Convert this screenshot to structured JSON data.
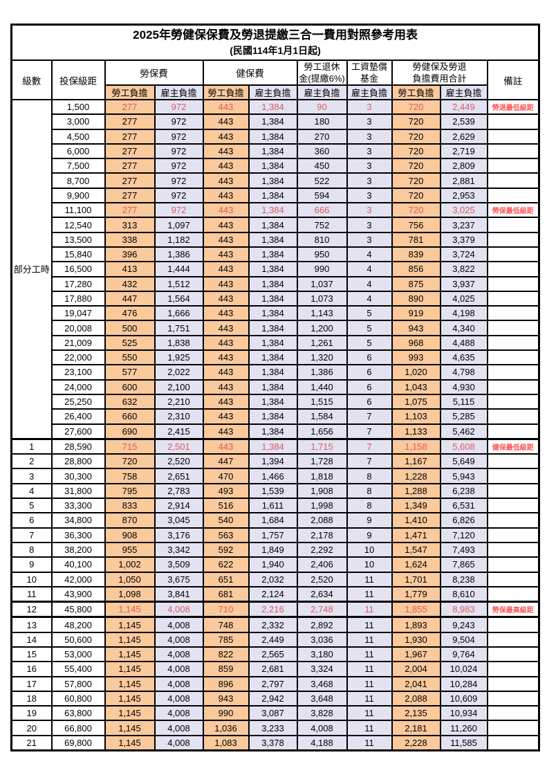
{
  "title": "2025年勞健保保費及勞退提繳三合一費用對照參考用表",
  "subtitle": "(民國114年1月1日起)",
  "header": {
    "level": "級數",
    "salary_bracket": "投保級距",
    "labor_insurance": "勞保費",
    "health_insurance": "健保費",
    "pension_line1": "勞工退休",
    "pension_line2": "金(提繳6%)",
    "wage_fund_line1": "工資墊償",
    "wage_fund_line2": "基金",
    "total_line1": "勞健保及勞退",
    "total_line2": "負擔費用合計",
    "remarks": "備註",
    "employee_share": "勞工負擔",
    "employer_share": "雇主負擔"
  },
  "part_time_label": "部分工時",
  "colors": {
    "employee_bg": "#FAC99C",
    "employer_bg": "#E3E2F1",
    "highlight_red": "#D95C5C",
    "remark_red": "#FF5555"
  },
  "rows": [
    {
      "level": "",
      "salary": "1,500",
      "values": [
        "277",
        "972",
        "443",
        "1,384",
        "90",
        "3",
        "720",
        "2,449"
      ],
      "remark": "勞退最低級距",
      "highlight": true
    },
    {
      "level": "",
      "salary": "3,000",
      "values": [
        "277",
        "972",
        "443",
        "1,384",
        "180",
        "3",
        "720",
        "2,539"
      ],
      "remark": "",
      "highlight": false
    },
    {
      "level": "",
      "salary": "4,500",
      "values": [
        "277",
        "972",
        "443",
        "1,384",
        "270",
        "3",
        "720",
        "2,629"
      ],
      "remark": "",
      "highlight": false
    },
    {
      "level": "",
      "salary": "6,000",
      "values": [
        "277",
        "972",
        "443",
        "1,384",
        "360",
        "3",
        "720",
        "2,719"
      ],
      "remark": "",
      "highlight": false
    },
    {
      "level": "",
      "salary": "7,500",
      "values": [
        "277",
        "972",
        "443",
        "1,384",
        "450",
        "3",
        "720",
        "2,809"
      ],
      "remark": "",
      "highlight": false
    },
    {
      "level": "",
      "salary": "8,700",
      "values": [
        "277",
        "972",
        "443",
        "1,384",
        "522",
        "3",
        "720",
        "2,881"
      ],
      "remark": "",
      "highlight": false
    },
    {
      "level": "",
      "salary": "9,900",
      "values": [
        "277",
        "972",
        "443",
        "1,384",
        "594",
        "3",
        "720",
        "2,953"
      ],
      "remark": "",
      "highlight": false
    },
    {
      "level": "",
      "salary": "11,100",
      "values": [
        "277",
        "972",
        "443",
        "1,384",
        "666",
        "3",
        "720",
        "3,025"
      ],
      "remark": "勞保最低級距",
      "highlight": true
    },
    {
      "level": "",
      "salary": "12,540",
      "values": [
        "313",
        "1,097",
        "443",
        "1,384",
        "752",
        "3",
        "756",
        "3,237"
      ],
      "remark": "",
      "highlight": false
    },
    {
      "level": "",
      "salary": "13,500",
      "values": [
        "338",
        "1,182",
        "443",
        "1,384",
        "810",
        "3",
        "781",
        "3,379"
      ],
      "remark": "",
      "highlight": false
    },
    {
      "level": "",
      "salary": "15,840",
      "values": [
        "396",
        "1,386",
        "443",
        "1,384",
        "950",
        "4",
        "839",
        "3,724"
      ],
      "remark": "",
      "highlight": false
    },
    {
      "level": "",
      "salary": "16,500",
      "values": [
        "413",
        "1,444",
        "443",
        "1,384",
        "990",
        "4",
        "856",
        "3,822"
      ],
      "remark": "",
      "highlight": false
    },
    {
      "level": "",
      "salary": "17,280",
      "values": [
        "432",
        "1,512",
        "443",
        "1,384",
        "1,037",
        "4",
        "875",
        "3,937"
      ],
      "remark": "",
      "highlight": false
    },
    {
      "level": "",
      "salary": "17,880",
      "values": [
        "447",
        "1,564",
        "443",
        "1,384",
        "1,073",
        "4",
        "890",
        "4,025"
      ],
      "remark": "",
      "highlight": false
    },
    {
      "level": "",
      "salary": "19,047",
      "values": [
        "476",
        "1,666",
        "443",
        "1,384",
        "1,143",
        "5",
        "919",
        "4,198"
      ],
      "remark": "",
      "highlight": false
    },
    {
      "level": "",
      "salary": "20,008",
      "values": [
        "500",
        "1,751",
        "443",
        "1,384",
        "1,200",
        "5",
        "943",
        "4,340"
      ],
      "remark": "",
      "highlight": false
    },
    {
      "level": "",
      "salary": "21,009",
      "values": [
        "525",
        "1,838",
        "443",
        "1,384",
        "1,261",
        "5",
        "968",
        "4,488"
      ],
      "remark": "",
      "highlight": false
    },
    {
      "level": "",
      "salary": "22,000",
      "values": [
        "550",
        "1,925",
        "443",
        "1,384",
        "1,320",
        "6",
        "993",
        "4,635"
      ],
      "remark": "",
      "highlight": false
    },
    {
      "level": "",
      "salary": "23,100",
      "values": [
        "577",
        "2,022",
        "443",
        "1,384",
        "1,386",
        "6",
        "1,020",
        "4,798"
      ],
      "remark": "",
      "highlight": false
    },
    {
      "level": "",
      "salary": "24,000",
      "values": [
        "600",
        "2,100",
        "443",
        "1,384",
        "1,440",
        "6",
        "1,043",
        "4,930"
      ],
      "remark": "",
      "highlight": false
    },
    {
      "level": "",
      "salary": "25,250",
      "values": [
        "632",
        "2,210",
        "443",
        "1,384",
        "1,515",
        "6",
        "1,075",
        "5,115"
      ],
      "remark": "",
      "highlight": false
    },
    {
      "level": "",
      "salary": "26,400",
      "values": [
        "660",
        "2,310",
        "443",
        "1,384",
        "1,584",
        "7",
        "1,103",
        "5,285"
      ],
      "remark": "",
      "highlight": false
    },
    {
      "level": "",
      "salary": "27,600",
      "values": [
        "690",
        "2,415",
        "443",
        "1,384",
        "1,656",
        "7",
        "1,133",
        "5,462"
      ],
      "remark": "",
      "highlight": false
    },
    {
      "level": "1",
      "salary": "28,590",
      "values": [
        "715",
        "2,501",
        "443",
        "1,384",
        "1,715",
        "7",
        "1,158",
        "5,608"
      ],
      "remark": "健保最低級距",
      "highlight": true
    },
    {
      "level": "2",
      "salary": "28,800",
      "values": [
        "720",
        "2,520",
        "447",
        "1,394",
        "1,728",
        "7",
        "1,167",
        "5,649"
      ],
      "remark": "",
      "highlight": false
    },
    {
      "level": "3",
      "salary": "30,300",
      "values": [
        "758",
        "2,651",
        "470",
        "1,466",
        "1,818",
        "8",
        "1,228",
        "5,943"
      ],
      "remark": "",
      "highlight": false
    },
    {
      "level": "4",
      "salary": "31,800",
      "values": [
        "795",
        "2,783",
        "493",
        "1,539",
        "1,908",
        "8",
        "1,288",
        "6,238"
      ],
      "remark": "",
      "highlight": false
    },
    {
      "level": "5",
      "salary": "33,300",
      "values": [
        "833",
        "2,914",
        "516",
        "1,611",
        "1,998",
        "8",
        "1,349",
        "6,531"
      ],
      "remark": "",
      "highlight": false
    },
    {
      "level": "6",
      "salary": "34,800",
      "values": [
        "870",
        "3,045",
        "540",
        "1,684",
        "2,088",
        "9",
        "1,410",
        "6,826"
      ],
      "remark": "",
      "highlight": false
    },
    {
      "level": "7",
      "salary": "36,300",
      "values": [
        "908",
        "3,176",
        "563",
        "1,757",
        "2,178",
        "9",
        "1,471",
        "7,120"
      ],
      "remark": "",
      "highlight": false
    },
    {
      "level": "8",
      "salary": "38,200",
      "values": [
        "955",
        "3,342",
        "592",
        "1,849",
        "2,292",
        "10",
        "1,547",
        "7,493"
      ],
      "remark": "",
      "highlight": false
    },
    {
      "level": "9",
      "salary": "40,100",
      "values": [
        "1,002",
        "3,509",
        "622",
        "1,940",
        "2,406",
        "10",
        "1,624",
        "7,865"
      ],
      "remark": "",
      "highlight": false
    },
    {
      "level": "10",
      "salary": "42,000",
      "values": [
        "1,050",
        "3,675",
        "651",
        "2,032",
        "2,520",
        "11",
        "1,701",
        "8,238"
      ],
      "remark": "",
      "highlight": false
    },
    {
      "level": "11",
      "salary": "43,900",
      "values": [
        "1,098",
        "3,841",
        "681",
        "2,124",
        "2,634",
        "11",
        "1,779",
        "8,610"
      ],
      "remark": "",
      "highlight": false
    },
    {
      "level": "12",
      "salary": "45,800",
      "values": [
        "1,145",
        "4,008",
        "710",
        "2,216",
        "2,748",
        "11",
        "1,855",
        "8,983"
      ],
      "remark": "勞保最高級距",
      "highlight": true
    },
    {
      "level": "13",
      "salary": "48,200",
      "values": [
        "1,145",
        "4,008",
        "748",
        "2,332",
        "2,892",
        "11",
        "1,893",
        "9,243"
      ],
      "remark": "",
      "highlight": false
    },
    {
      "level": "14",
      "salary": "50,600",
      "values": [
        "1,145",
        "4,008",
        "785",
        "2,449",
        "3,036",
        "11",
        "1,930",
        "9,504"
      ],
      "remark": "",
      "highlight": false
    },
    {
      "level": "15",
      "salary": "53,000",
      "values": [
        "1,145",
        "4,008",
        "822",
        "2,565",
        "3,180",
        "11",
        "1,967",
        "9,764"
      ],
      "remark": "",
      "highlight": false
    },
    {
      "level": "16",
      "salary": "55,400",
      "values": [
        "1,145",
        "4,008",
        "859",
        "2,681",
        "3,324",
        "11",
        "2,004",
        "10,024"
      ],
      "remark": "",
      "highlight": false
    },
    {
      "level": "17",
      "salary": "57,800",
      "values": [
        "1,145",
        "4,008",
        "896",
        "2,797",
        "3,468",
        "11",
        "2,041",
        "10,284"
      ],
      "remark": "",
      "highlight": false
    },
    {
      "level": "18",
      "salary": "60,800",
      "values": [
        "1,145",
        "4,008",
        "943",
        "2,942",
        "3,648",
        "11",
        "2,088",
        "10,609"
      ],
      "remark": "",
      "highlight": false
    },
    {
      "level": "19",
      "salary": "63,800",
      "values": [
        "1,145",
        "4,008",
        "990",
        "3,087",
        "3,828",
        "11",
        "2,135",
        "10,934"
      ],
      "remark": "",
      "highlight": false
    },
    {
      "level": "20",
      "salary": "66,800",
      "values": [
        "1,145",
        "4,008",
        "1,036",
        "3,233",
        "4,008",
        "11",
        "2,181",
        "11,260"
      ],
      "remark": "",
      "highlight": false
    },
    {
      "level": "21",
      "salary": "69,800",
      "values": [
        "1,145",
        "4,008",
        "1,083",
        "3,378",
        "4,188",
        "11",
        "2,228",
        "11,585"
      ],
      "remark": "",
      "highlight": false
    }
  ]
}
